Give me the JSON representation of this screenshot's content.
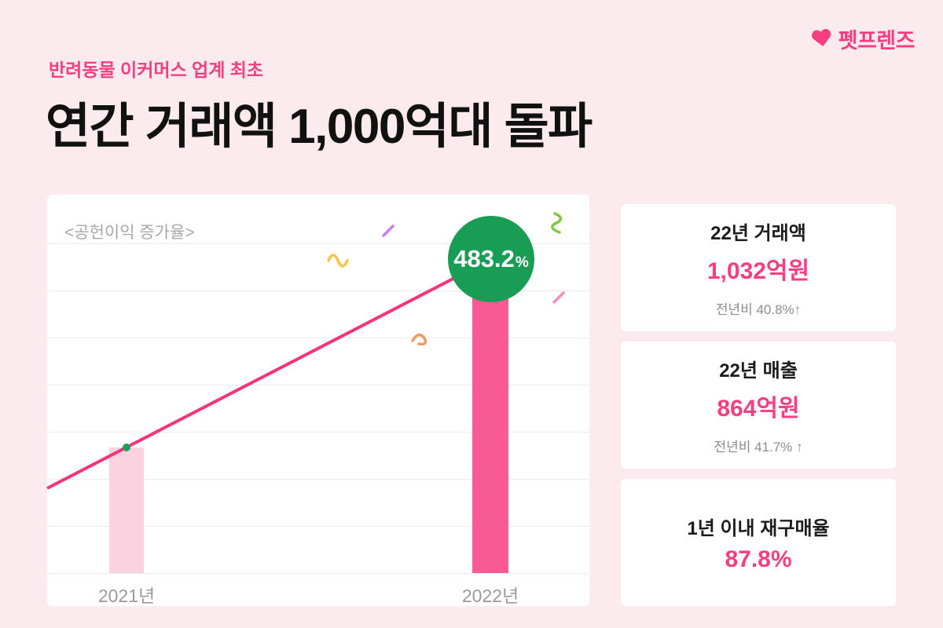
{
  "page": {
    "background": "#fcebee",
    "accent_pink": "#f63e80",
    "badge_green": "#199c54"
  },
  "logo": {
    "brand": "펫프렌즈"
  },
  "header": {
    "eyebrow": "반려동물 이커머스 업계 최초",
    "title": "연간 거래액 1,000억대 돌파"
  },
  "chart_data": {
    "type": "bar",
    "title": "<공헌이익 증가율>",
    "categories": [
      "2021년",
      "2022년"
    ],
    "series": [
      {
        "name": "공헌이익 증가율 (%)",
        "values": [
          210,
          483.2
        ]
      }
    ],
    "value_note": "2022 value labeled 483.2%; 2021 value unlabeled, estimated from bar height",
    "badge": {
      "value": "483.2",
      "unit": "%"
    },
    "xlabel": "",
    "ylabel": "",
    "ylim": [
      0,
      550
    ],
    "grid": true,
    "legend": false,
    "trendline": "straight pink line rising from lower-left to the 2022 badge",
    "colors": {
      "bar_2021": "#fbd2e0",
      "bar_2022": "#f85a93",
      "line": "#f5347a",
      "badge_bg": "#199c54",
      "badge_text": "#ffffff"
    }
  },
  "cards": [
    {
      "title": "22년 거래액",
      "value": "1,032억원",
      "sub": "전년비 40.8%↑"
    },
    {
      "title": "22년 매출",
      "value": "864억원",
      "sub": "전년비 41.7% ↑"
    },
    {
      "title": "1년 이내 재구매율",
      "value": "87.8%",
      "sub": ""
    }
  ]
}
